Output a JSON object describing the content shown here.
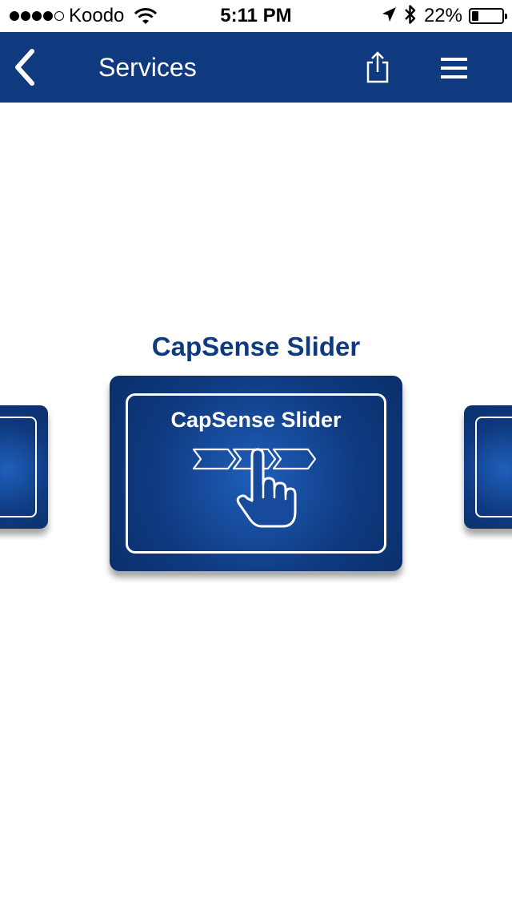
{
  "status_bar": {
    "carrier": "Koodo",
    "signal_bars_filled": 4,
    "signal_bars_total": 5,
    "time": "5:11 PM",
    "battery_percent": "22%",
    "battery_level": 0.22,
    "icons": [
      "wifi-icon",
      "location-arrow-icon",
      "bluetooth-icon",
      "battery-icon"
    ]
  },
  "nav": {
    "back_icon": "chevron-left-icon",
    "title": "Services",
    "share_icon": "share-icon",
    "menu_icon": "hamburger-menu-icon"
  },
  "carousel": {
    "current_title": "CapSense Slider",
    "current_card": {
      "label": "CapSense Slider",
      "icon": "hand-pointer-slider-icon"
    }
  },
  "colors": {
    "nav_background": "#0f3a80",
    "accent": "#0f3a80",
    "card_background": "#0f3a80",
    "card_highlight": "#1f5fbb"
  }
}
